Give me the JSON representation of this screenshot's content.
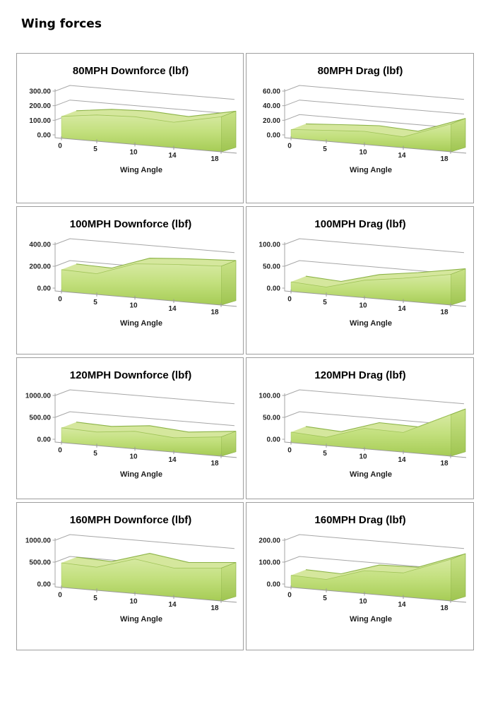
{
  "page": {
    "heading": "Wing forces"
  },
  "charts_common": {
    "x_axis_label": "Wing Angle",
    "x_categories": [
      "0",
      "5",
      "10",
      "14",
      "18"
    ]
  },
  "colors": {
    "panel_border": "#9e9e9e",
    "grid": "#a6a6a6",
    "floor": "#9a9a9a",
    "text": "#1f1f1f",
    "area_front_top": "#d6e9a1",
    "area_front_mid": "#c3e07e",
    "area_front_bottom": "#a6cc55",
    "area_ribbon": "#d5e79d",
    "area_cap_top": "#c9e287",
    "area_cap_bottom": "#9fc551",
    "area_edge": "#8cb347",
    "area_inner_edge": "#a0c458"
  },
  "chart_data": [
    {
      "type": "area",
      "title": "80MPH Downforce (lbf)",
      "xlabel": "Wing Angle",
      "ylabel": "",
      "categories": [
        0,
        5,
        10,
        14,
        18
      ],
      "values": [
        150,
        180,
        190,
        175,
        240
      ],
      "ylim": [
        0,
        300
      ],
      "yticks": [
        0,
        100,
        200,
        300
      ],
      "ytick_labels": [
        "0.00",
        "100.00",
        "200.00",
        "300.00"
      ],
      "legend": "none",
      "grid": true
    },
    {
      "type": "area",
      "title": "80MPH Drag (lbf)",
      "xlabel": "Wing Angle",
      "ylabel": "",
      "categories": [
        0,
        5,
        10,
        14,
        18
      ],
      "values": [
        12,
        15,
        18,
        15,
        38
      ],
      "ylim": [
        0,
        60
      ],
      "yticks": [
        0,
        20,
        40,
        60
      ],
      "ytick_labels": [
        "0.00",
        "20.00",
        "40.00",
        "60.00"
      ],
      "legend": "none",
      "grid": true
    },
    {
      "type": "area",
      "title": "100MPH Downforce (lbf)",
      "xlabel": "Wing Angle",
      "ylabel": "",
      "categories": [
        0,
        5,
        10,
        14,
        18
      ],
      "values": [
        200,
        190,
        310,
        335,
        355
      ],
      "ylim": [
        0,
        400
      ],
      "yticks": [
        0,
        200,
        400
      ],
      "ytick_labels": [
        "0.00",
        "200.00",
        "400.00"
      ],
      "legend": "none",
      "grid": true
    },
    {
      "type": "area",
      "title": "100MPH Drag (lbf)",
      "xlabel": "Wing Angle",
      "ylabel": "",
      "categories": [
        0,
        5,
        10,
        14,
        18
      ],
      "values": [
        22,
        17,
        40,
        52,
        70
      ],
      "ylim": [
        0,
        100
      ],
      "yticks": [
        0,
        50,
        100
      ],
      "ytick_labels": [
        "0.00",
        "50.00",
        "100.00"
      ],
      "legend": "none",
      "grid": true
    },
    {
      "type": "area",
      "title": "120MPH Downforce (lbf)",
      "xlabel": "Wing Angle",
      "ylabel": "",
      "categories": [
        0,
        5,
        10,
        14,
        18
      ],
      "values": [
        340,
        310,
        400,
        330,
        440
      ],
      "ylim": [
        0,
        1000
      ],
      "yticks": [
        0,
        500,
        1000
      ],
      "ytick_labels": [
        "0.00",
        "500.00",
        "1000.00"
      ],
      "legend": "none",
      "grid": true
    },
    {
      "type": "area",
      "title": "120MPH Drag (lbf)",
      "xlabel": "Wing Angle",
      "ylabel": "",
      "categories": [
        0,
        5,
        10,
        14,
        18
      ],
      "values": [
        24,
        19,
        47,
        45,
        95
      ],
      "ylim": [
        0,
        100
      ],
      "yticks": [
        0,
        50,
        100
      ],
      "ytick_labels": [
        "0.00",
        "50.00",
        "100.00"
      ],
      "legend": "none",
      "grid": true
    },
    {
      "type": "area",
      "title": "160MPH Downforce (lbf)",
      "xlabel": "Wing Angle",
      "ylabel": "",
      "categories": [
        0,
        5,
        10,
        14,
        18
      ],
      "values": [
        560,
        530,
        790,
        660,
        750
      ],
      "ylim": [
        0,
        1000
      ],
      "yticks": [
        0,
        500,
        1000
      ],
      "ytick_labels": [
        "0.00",
        "500.00",
        "1000.00"
      ],
      "legend": "none",
      "grid": true
    },
    {
      "type": "area",
      "title": "160MPH Drag (lbf)",
      "xlabel": "Wing Angle",
      "ylabel": "",
      "categories": [
        0,
        5,
        10,
        14,
        18
      ],
      "values": [
        55,
        50,
        105,
        110,
        190
      ],
      "ylim": [
        0,
        200
      ],
      "yticks": [
        0,
        100,
        200
      ],
      "ytick_labels": [
        "0.00",
        "100.00",
        "200.00"
      ],
      "legend": "none",
      "grid": true
    }
  ]
}
